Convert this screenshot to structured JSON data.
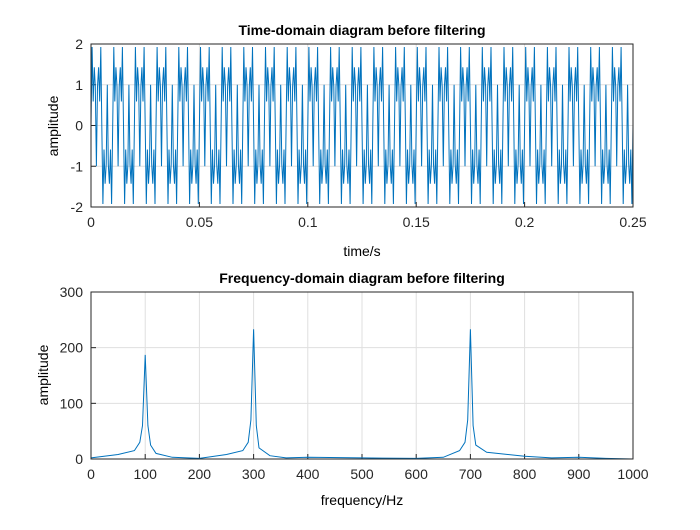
{
  "chart_data": [
    {
      "type": "line",
      "title": "Time-domain diagram before filtering",
      "xlabel": "time/s",
      "ylabel": "amplitude",
      "xlim": [
        0,
        0.25
      ],
      "ylim": [
        -2,
        2
      ],
      "grid": true,
      "xticks": [
        "0",
        "0.05",
        "0.1",
        "0.15",
        "0.2",
        "0.25"
      ],
      "yticks": [
        "-2",
        "-1",
        "0",
        "1",
        "2"
      ],
      "signal_components_hz": [
        100,
        300,
        700
      ],
      "color": "#0072BD"
    },
    {
      "type": "line",
      "title": "Frequency-domain diagram before filtering",
      "xlabel": "frequency/Hz",
      "ylabel": "amplitude",
      "xlim": [
        0,
        1000
      ],
      "ylim": [
        0,
        300
      ],
      "grid": true,
      "xticks": [
        "0",
        "100",
        "200",
        "300",
        "400",
        "500",
        "600",
        "700",
        "800",
        "900",
        "1000"
      ],
      "yticks": [
        "0",
        "100",
        "200",
        "300"
      ],
      "x": [
        0,
        50,
        80,
        90,
        95,
        100,
        105,
        110,
        120,
        150,
        200,
        250,
        280,
        290,
        295,
        300,
        305,
        310,
        330,
        360,
        400,
        500,
        600,
        650,
        680,
        690,
        695,
        700,
        705,
        710,
        730,
        800,
        850,
        900,
        950,
        1000
      ],
      "y": [
        2,
        8,
        15,
        30,
        60,
        187,
        60,
        25,
        10,
        3,
        1,
        8,
        15,
        30,
        70,
        233,
        60,
        20,
        6,
        2,
        3,
        2,
        1,
        3,
        15,
        30,
        70,
        233,
        60,
        25,
        12,
        5,
        2,
        3,
        1,
        0
      ],
      "color": "#0072BD"
    }
  ]
}
